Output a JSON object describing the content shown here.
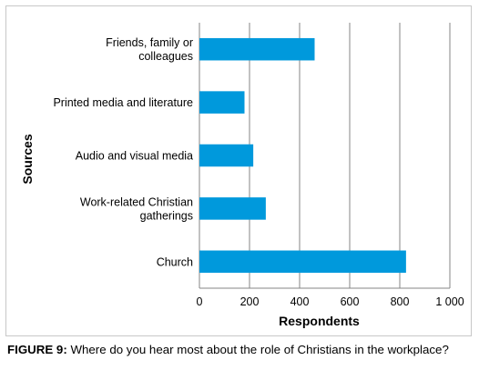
{
  "chart_data": {
    "type": "bar",
    "orientation": "horizontal",
    "categories": [
      [
        "Friends, family or",
        "colleagues"
      ],
      [
        "Printed media and literature"
      ],
      [
        "Audio and visual media"
      ],
      [
        "Work-related Christian",
        "gatherings"
      ],
      [
        "Church"
      ]
    ],
    "values": [
      460,
      180,
      215,
      265,
      825
    ],
    "xlabel": "Respondents",
    "ylabel": "Sources",
    "xlim": [
      0,
      1000
    ],
    "xticks": [
      0,
      200,
      400,
      600,
      800,
      1000
    ],
    "xtick_labels": [
      "0",
      "200",
      "400",
      "600",
      "800",
      "1 000"
    ],
    "grid": "vertical",
    "bar_color": "#0099dc"
  },
  "caption": {
    "label": "FIGURE 9:",
    "text": " Where do you hear most about the role of Christians in the workplace?"
  }
}
